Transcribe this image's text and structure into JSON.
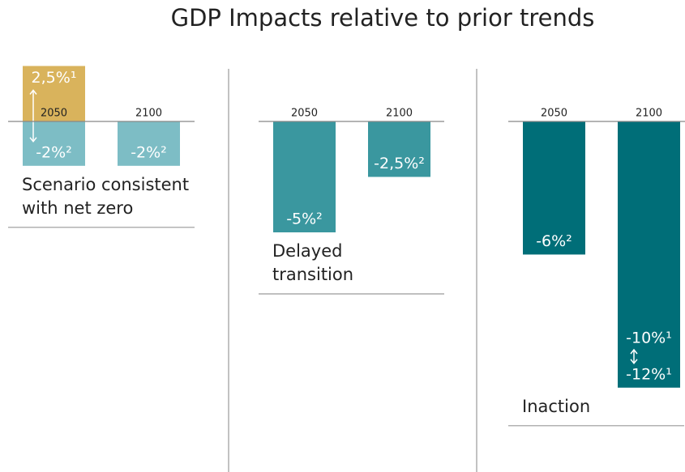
{
  "title": "GDP Impacts relative to prior trends",
  "chart_data": [
    {
      "type": "bar",
      "categories": [
        "2050",
        "2100"
      ],
      "values": [
        -2,
        -2
      ],
      "value_labels": [
        "-2%²",
        "-2%²"
      ],
      "range_values": [
        2.5,
        null
      ],
      "range_labels": [
        "2,5%¹",
        null
      ],
      "color": "#7dbdc5",
      "range_color": "#d9b35c",
      "ylim": [
        -14,
        3
      ],
      "caption": [
        "Scenario consistent",
        "with net zero"
      ]
    },
    {
      "type": "bar",
      "categories": [
        "2050",
        "2100"
      ],
      "values": [
        -5,
        -2.5
      ],
      "value_labels": [
        "-5%²",
        "-2,5%²"
      ],
      "range_values": [
        null,
        null
      ],
      "range_labels": [
        null,
        null
      ],
      "color": "#3a979f",
      "range_color": "#d9b35c",
      "ylim": [
        -14,
        3
      ],
      "caption": [
        "Delayed",
        "transition"
      ]
    },
    {
      "type": "bar",
      "categories": [
        "2050",
        "2100"
      ],
      "values": [
        -6,
        -12
      ],
      "value_labels": [
        "-6%²",
        "-12%¹"
      ],
      "range_values": [
        null,
        -10
      ],
      "range_labels": [
        null,
        "-10%¹"
      ],
      "color": "#006e78",
      "range_color": "#d9b35c",
      "ylim": [
        -14,
        3
      ],
      "caption": [
        "Inaction"
      ]
    }
  ]
}
